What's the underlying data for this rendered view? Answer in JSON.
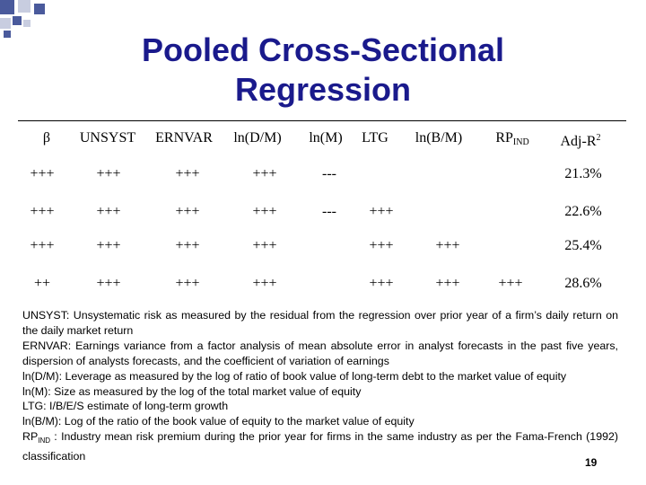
{
  "slide": {
    "title_line1": "Pooled Cross-Sectional",
    "title_line2": "Regression",
    "page_number": "19",
    "decoration_colors": [
      "#4a5a9c",
      "#c8cde0"
    ]
  },
  "table": {
    "headers": [
      {
        "text": "β"
      },
      {
        "text": "UNSYST"
      },
      {
        "text": "ERNVAR"
      },
      {
        "text": "ln(D/M)"
      },
      {
        "text": "ln(M)"
      },
      {
        "text": "LTG"
      },
      {
        "text": "ln(B/M)"
      },
      {
        "text": "RP",
        "sub": "IND"
      },
      {
        "text": "Adj-R",
        "sup": "2"
      }
    ],
    "rows": [
      [
        "+++",
        "+++",
        "+++",
        "+++",
        "---",
        "",
        "",
        "",
        "21.3%"
      ],
      [
        "+++",
        "+++",
        "+++",
        "+++",
        "---",
        "+++",
        "",
        "",
        "22.6%"
      ],
      [
        "+++",
        "+++",
        "+++",
        "+++",
        "",
        "+++",
        "+++",
        "",
        "25.4%"
      ],
      [
        "++",
        "+++",
        "+++",
        "+++",
        "",
        "+++",
        "+++",
        "+++",
        "28.6%"
      ]
    ]
  },
  "notes": [
    "UNSYST: Unsystematic risk as measured by the residual from the regression over prior year of a firm’s daily return on the daily market return",
    "ERNVAR: Earnings variance from a factor analysis of mean absolute error in analyst forecasts in the past five years, dispersion of analysts forecasts, and the coefficient of variation of earnings",
    "ln(D/M): Leverage as measured by the log of ratio of book value of long-term debt to the market value of equity",
    "ln(M): Size as measured by the log of the total market value of equity",
    "LTG: I/B/E/S estimate of long-term growth",
    "ln(B/M): Log of the ratio of the book value of equity to the market value of equity"
  ],
  "last_note": {
    "prefix": "RP",
    "sub": "IND",
    "text": " : Industry mean risk premium during the prior year for firms in the same industry as per the Fama-French (1992) classification"
  }
}
